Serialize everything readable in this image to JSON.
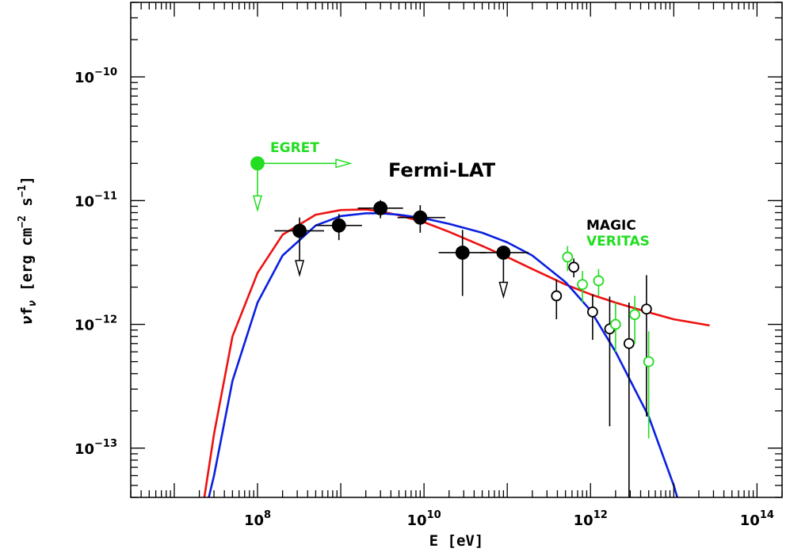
{
  "chart_data": {
    "type": "scatter",
    "x_scale": "log",
    "y_scale": "log",
    "xlabel": "E [eV]",
    "ylabel": "νf_ν [erg cm^-2 s^-1]",
    "xlim": [
      3000000.0,
      200000000000000.0
    ],
    "ylim": [
      4e-14,
      4e-10
    ],
    "x_tick_labels": [
      {
        "value": 100000000.0,
        "base": "10",
        "exp": "8"
      },
      {
        "value": 10000000000.0,
        "base": "10",
        "exp": "10"
      },
      {
        "value": 1000000000000.0,
        "base": "10",
        "exp": "12"
      },
      {
        "value": 100000000000000.0,
        "base": "10",
        "exp": "14"
      }
    ],
    "y_tick_labels": [
      {
        "value": 1e-10,
        "base": "10",
        "exp": "−10"
      },
      {
        "value": 1e-11,
        "base": "10",
        "exp": "−11"
      },
      {
        "value": 1e-12,
        "base": "10",
        "exp": "−12"
      },
      {
        "value": 1e-13,
        "base": "10",
        "exp": "−13"
      }
    ],
    "annotations": [
      {
        "text": "Fermi-LAT",
        "color": "#000000"
      },
      {
        "text": "EGRET",
        "color": "#22dd22"
      },
      {
        "text": "MAGIC",
        "color": "#000000"
      },
      {
        "text": "VERITAS",
        "color": "#22dd22"
      }
    ],
    "series": [
      {
        "marker": "filled-circle",
        "color": "#000000",
        "points": [
          {
            "x": 320000000.0,
            "y": 5.7e-12,
            "xerr": [
              160000000.0,
              630000000.0
            ],
            "yerr": [
              3e-12,
              7.3e-12
            ],
            "upper_limit": true
          },
          {
            "x": 950000000.0,
            "y": 6.3e-12,
            "xerr": [
              500000000.0,
              1800000000.0
            ],
            "yerr": [
              4.8e-12,
              7.8e-12
            ]
          },
          {
            "x": 3000000000.0,
            "y": 8.7e-12,
            "xerr": [
              1600000000.0,
              5600000000.0
            ],
            "yerr": [
              7.2e-12,
              1.01e-11
            ]
          },
          {
            "x": 9000000000.0,
            "y": 7.3e-12,
            "xerr": [
              4800000000.0,
              18000000000.0
            ],
            "yerr": [
              5.5e-12,
              9.2e-12
            ]
          },
          {
            "x": 29000000000.0,
            "y": 3.8e-12,
            "xerr": [
              15000000000.0,
              56000000000.0
            ],
            "yerr": [
              1.7e-12,
              5.8e-12
            ]
          },
          {
            "x": 90000000000.0,
            "y": 3.8e-12,
            "xerr": [
              47000000000.0,
              180000000000.0
            ],
            "yerr": [
              2e-12,
              3.8e-12
            ],
            "upper_limit": true
          }
        ]
      },
      {
        "marker": "filled-circle",
        "color": "#22dd22",
        "points": [
          {
            "x": 100000000.0,
            "y": 2e-11,
            "xerr": [
              100000000.0,
              1300000000.0
            ],
            "yerr": [
              1e-11,
              2e-11
            ],
            "upper_limit": true,
            "lower_limit_x": true
          }
        ]
      },
      {
        "marker": "open-circle",
        "color": "#000000",
        "points": [
          {
            "x": 390000000000.0,
            "y": 1.7e-12,
            "yerr": [
              1.1e-12,
              2.3e-12
            ]
          },
          {
            "x": 630000000000.0,
            "y": 2.9e-12,
            "yerr": [
              2.4e-12,
              3.4e-12
            ]
          },
          {
            "x": 1060000000000.0,
            "y": 1.26e-12,
            "yerr": [
              7.5e-13,
              1.75e-12
            ]
          },
          {
            "x": 1700000000000.0,
            "y": 9.2e-13,
            "yerr": [
              1.5e-13,
              1.68e-12
            ]
          },
          {
            "x": 2900000000000.0,
            "y": 7e-13,
            "yerr": [
              4e-14,
              1.5e-12
            ]
          },
          {
            "x": 4700000000000.0,
            "y": 1.33e-12,
            "yerr": [
              1.8e-13,
              2.5e-12
            ]
          }
        ]
      },
      {
        "marker": "open-circle",
        "color": "#22dd22",
        "points": [
          {
            "x": 530000000000.0,
            "y": 3.5e-12,
            "yerr": [
              2.7e-12,
              4.3e-12
            ]
          },
          {
            "x": 800000000000.0,
            "y": 2.1e-12,
            "yerr": [
              1.5e-12,
              2.7e-12
            ]
          },
          {
            "x": 1250000000000.0,
            "y": 2.25e-12,
            "yerr": [
              1.7e-12,
              2.8e-12
            ]
          },
          {
            "x": 2000000000000.0,
            "y": 1e-12,
            "yerr": [
              6e-13,
              1.5e-12
            ]
          },
          {
            "x": 3400000000000.0,
            "y": 1.2e-12,
            "yerr": [
              7e-13,
              1.7e-12
            ]
          },
          {
            "x": 5000000000000.0,
            "y": 5e-13,
            "yerr": [
              1.2e-13,
              8.8e-13
            ]
          }
        ]
      },
      {
        "type": "line",
        "color": "#ee1111",
        "x": [
          23000000.0,
          30000000.0,
          50000000.0,
          100000000.0,
          200000000.0,
          500000000.0,
          1000000000.0,
          2000000000.0,
          3000000000.0,
          5000000000.0,
          10000000000.0,
          20000000000.0,
          50000000000.0,
          100000000000.0,
          200000000000.0,
          500000000000.0,
          1000000000000.0,
          2000000000000.0,
          5000000000000.0,
          10000000000000.0,
          27000000000000.0
        ],
        "y": [
          4e-14,
          1.3e-13,
          8e-13,
          2.6e-12,
          5.3e-12,
          7.7e-12,
          8.4e-12,
          8.5e-12,
          8.2e-12,
          7.6e-12,
          6.7e-12,
          5.6e-12,
          4.3e-12,
          3.5e-12,
          2.8e-12,
          2.1e-12,
          1.75e-12,
          1.5e-12,
          1.25e-12,
          1.1e-12,
          9.8e-13
        ]
      },
      {
        "type": "line",
        "color": "#0a1fe0",
        "x": [
          26000000.0,
          30000000.0,
          50000000.0,
          100000000.0,
          200000000.0,
          500000000.0,
          1000000000.0,
          2000000000.0,
          3000000000.0,
          5000000000.0,
          10000000000.0,
          20000000000.0,
          50000000000.0,
          100000000000.0,
          200000000000.0,
          500000000000.0,
          1000000000000.0,
          2000000000000.0,
          5000000000000.0,
          10000000000000.0,
          11000000000000.0
        ],
        "y": [
          4e-14,
          6e-14,
          3.5e-13,
          1.5e-12,
          3.6e-12,
          6.3e-12,
          7.5e-12,
          7.9e-12,
          7.9e-12,
          7.7e-12,
          7.2e-12,
          6.5e-12,
          5.5e-12,
          4.6e-12,
          3.6e-12,
          2.2e-12,
          1.3e-12,
          6e-13,
          1.8e-13,
          5e-14,
          4e-14
        ]
      }
    ]
  }
}
